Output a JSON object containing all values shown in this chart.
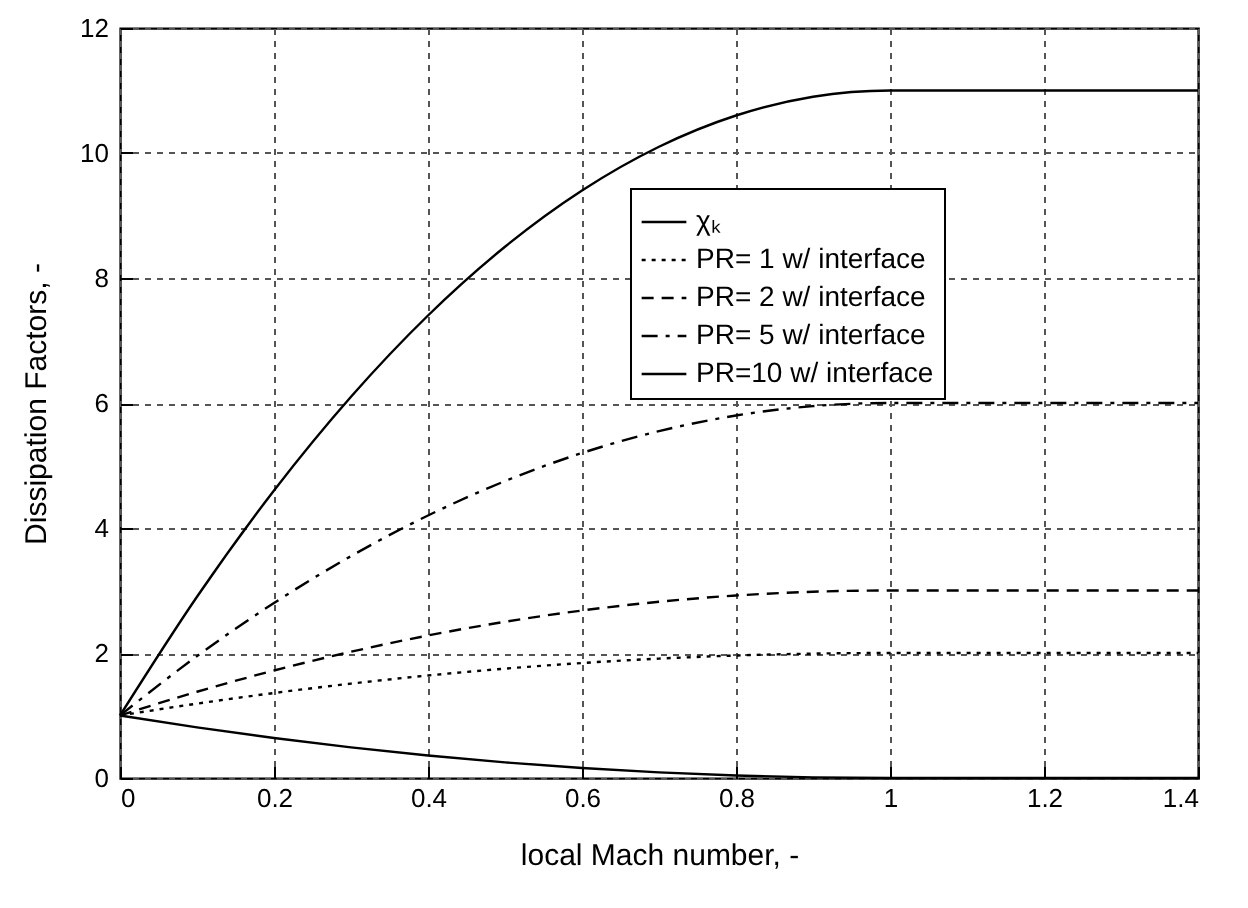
{
  "chart_data": {
    "type": "line",
    "xlabel": "local Mach number, -",
    "ylabel": "Dissipation Factors, -",
    "x": [
      0,
      0.1,
      0.2,
      0.3,
      0.4,
      0.5,
      0.6,
      0.7,
      0.8,
      0.9,
      1,
      1.2,
      1.4
    ],
    "series": [
      {
        "name": "χₖ",
        "color": "#000000",
        "line_style": "solid",
        "values": [
          1,
          0.81,
          0.64,
          0.49,
          0.36,
          0.25,
          0.16,
          0.09,
          0.04,
          0.01,
          0,
          0,
          0
        ]
      },
      {
        "name": "PR= 1 w/ interface",
        "color": "#000000",
        "line_style": "dotted",
        "values": [
          1,
          1.19,
          1.36,
          1.51,
          1.64,
          1.75,
          1.84,
          1.91,
          1.96,
          1.99,
          2,
          2,
          2
        ]
      },
      {
        "name": "PR= 2 w/ interface",
        "color": "#000000",
        "line_style": "dashed",
        "values": [
          1,
          1.38,
          1.72,
          2.02,
          2.28,
          2.5,
          2.68,
          2.82,
          2.92,
          2.98,
          3,
          3,
          3
        ]
      },
      {
        "name": "PR= 5 w/ interface",
        "color": "#000000",
        "line_style": "dashdot",
        "values": [
          1,
          1.95,
          2.8,
          3.55,
          4.2,
          4.75,
          5.2,
          5.55,
          5.8,
          5.95,
          6,
          6,
          6
        ]
      },
      {
        "name": "PR=10 w/ interface",
        "color": "#000000",
        "line_style": "solid",
        "values": [
          1,
          2.9,
          4.6,
          6.1,
          7.4,
          8.5,
          9.4,
          10.1,
          10.6,
          10.9,
          11,
          11,
          11
        ]
      }
    ],
    "xlim": [
      0,
      1.4
    ],
    "xticks": [
      0,
      0.2,
      0.4,
      0.6,
      0.8,
      1,
      1.2,
      1.4
    ],
    "ylim": [
      0,
      12
    ],
    "yticks": [
      0,
      2,
      4,
      6,
      8,
      10,
      12
    ],
    "grid": true,
    "legend": "top right",
    "marker": "none"
  }
}
